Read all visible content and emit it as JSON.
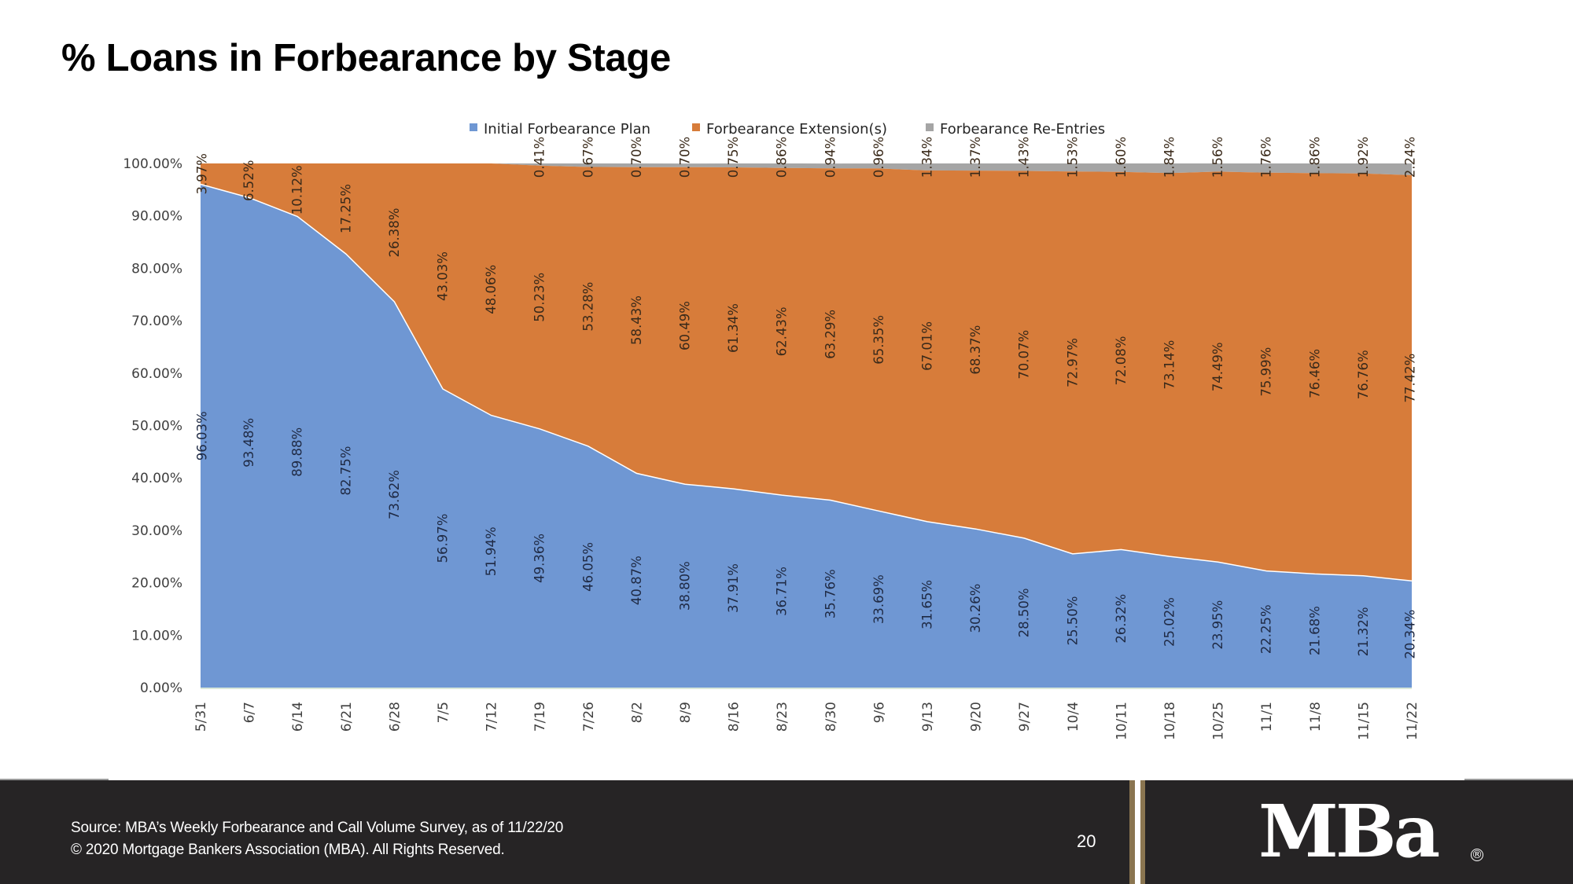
{
  "slide": {
    "title": "% Loans in Forbearance by Stage",
    "page_number": "20"
  },
  "footer": {
    "source": "Source: MBA’s Weekly Forbearance and Call Volume Survey, as of 11/22/20",
    "copyright": "© 2020 Mortgage Bankers Association (MBA). All Rights Reserved.",
    "logo_text": "MBa",
    "logo_registered": "®"
  },
  "colors": {
    "initial": "#6f97d3",
    "extension": "#d77c3a",
    "reentry": "#a5a5a5"
  },
  "chart_data": {
    "type": "area",
    "stacked": "100%",
    "title": "",
    "xlabel": "",
    "ylabel": "",
    "ylim": [
      0,
      100
    ],
    "yticks": [
      "0.00%",
      "10.00%",
      "20.00%",
      "30.00%",
      "40.00%",
      "50.00%",
      "60.00%",
      "70.00%",
      "80.00%",
      "90.00%",
      "100.00%"
    ],
    "legend_position": "top",
    "categories": [
      "5/31",
      "6/7",
      "6/14",
      "6/21",
      "6/28",
      "7/5",
      "7/12",
      "7/19",
      "7/26",
      "8/2",
      "8/9",
      "8/16",
      "8/23",
      "8/30",
      "9/6",
      "9/13",
      "9/20",
      "9/27",
      "10/4",
      "10/11",
      "10/18",
      "10/25",
      "11/1",
      "11/8",
      "11/15",
      "11/22"
    ],
    "series": [
      {
        "name": "Initial Forbearance Plan",
        "values": [
          96.03,
          93.48,
          89.88,
          82.75,
          73.62,
          56.97,
          51.94,
          49.36,
          46.05,
          40.87,
          38.8,
          37.91,
          36.71,
          35.76,
          33.69,
          31.65,
          30.26,
          28.5,
          25.5,
          26.32,
          25.02,
          23.95,
          22.25,
          21.68,
          21.32,
          20.34
        ],
        "labels": [
          "96.03%",
          "93.48%",
          "89.88%",
          "82.75%",
          "73.62%",
          "56.97%",
          "51.94%",
          "49.36%",
          "46.05%",
          "40.87%",
          "38.80%",
          "37.91%",
          "36.71%",
          "35.76%",
          "33.69%",
          "31.65%",
          "30.26%",
          "28.50%",
          "25.50%",
          "26.32%",
          "25.02%",
          "23.95%",
          "22.25%",
          "21.68%",
          "21.32%",
          "20.34%"
        ]
      },
      {
        "name": "Forbearance Extension(s)",
        "values": [
          3.97,
          6.52,
          10.12,
          17.25,
          26.38,
          43.03,
          48.06,
          50.23,
          53.28,
          58.43,
          60.49,
          61.34,
          62.43,
          63.29,
          65.35,
          67.01,
          68.37,
          70.07,
          72.97,
          72.08,
          73.14,
          74.49,
          75.99,
          76.46,
          76.76,
          77.42
        ],
        "labels": [
          "3.97%",
          "6.52%",
          "10.12%",
          "17.25%",
          "26.38%",
          "43.03%",
          "48.06%",
          "50.23%",
          "53.28%",
          "58.43%",
          "60.49%",
          "61.34%",
          "62.43%",
          "63.29%",
          "65.35%",
          "67.01%",
          "68.37%",
          "70.07%",
          "72.97%",
          "72.08%",
          "73.14%",
          "74.49%",
          "75.99%",
          "76.46%",
          "76.76%",
          "77.42%"
        ]
      },
      {
        "name": "Forbearance Re-Entries",
        "values": [
          0,
          0,
          0,
          0,
          0,
          0,
          0,
          0.41,
          0.67,
          0.7,
          0.7,
          0.75,
          0.86,
          0.94,
          0.96,
          1.34,
          1.37,
          1.43,
          1.53,
          1.6,
          1.84,
          1.56,
          1.76,
          1.86,
          1.92,
          2.24
        ],
        "labels": [
          null,
          null,
          null,
          null,
          null,
          null,
          null,
          "0.41%",
          "0.67%",
          "0.70%",
          "0.70%",
          "0.75%",
          "0.86%",
          "0.94%",
          "0.96%",
          "1.34%",
          "1.37%",
          "1.43%",
          "1.53%",
          "1.60%",
          "1.84%",
          "1.56%",
          "1.76%",
          "1.86%",
          "1.92%",
          "2.24%"
        ]
      }
    ]
  }
}
